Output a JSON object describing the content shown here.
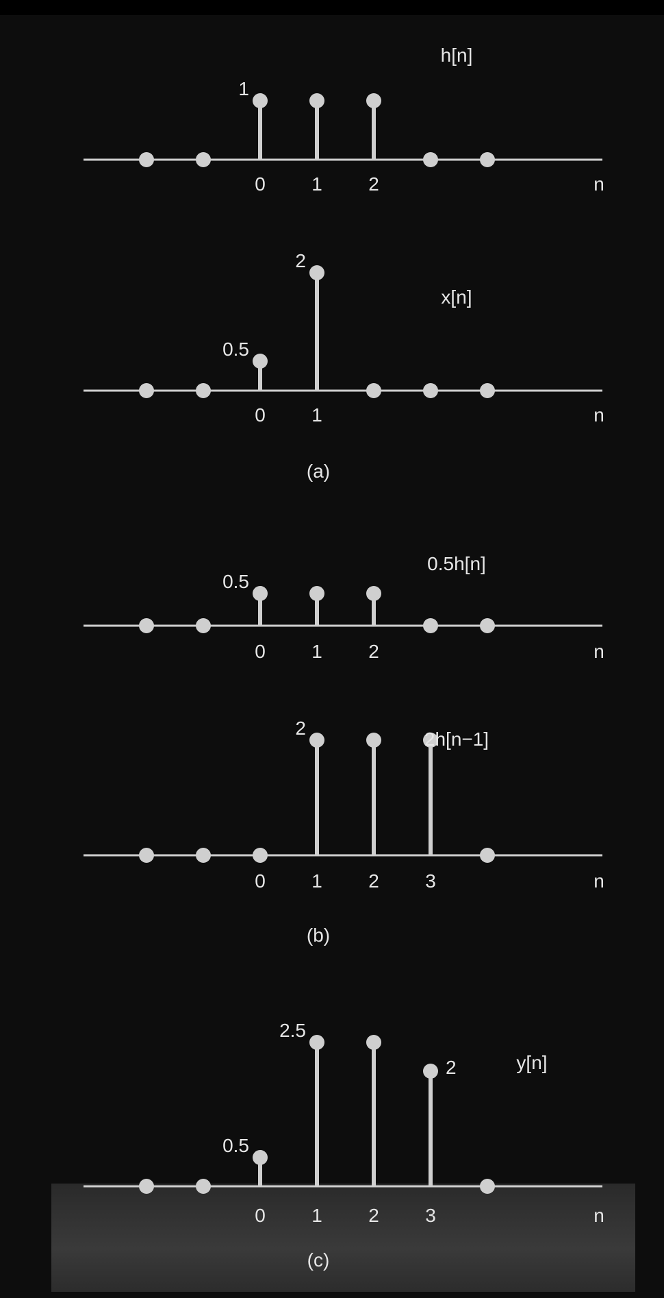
{
  "chart_data": [
    {
      "type": "stem",
      "series_label": "h[n]",
      "x": [
        -2,
        -1,
        0,
        1,
        2,
        3,
        4
      ],
      "values": [
        0,
        0,
        1,
        1,
        1,
        0,
        0
      ],
      "x_tick_labels": [
        "",
        "",
        "0",
        "1",
        "2",
        "",
        ""
      ],
      "value_labels": [
        {
          "x": 0,
          "text": "1"
        }
      ],
      "axis_label": "n",
      "ylim": [
        0,
        2.5
      ],
      "colors": {
        "stem": "#cccccc",
        "axis": "#cccccc"
      }
    },
    {
      "type": "stem",
      "series_label": "x[n]",
      "x": [
        -2,
        -1,
        0,
        1,
        2,
        3,
        4
      ],
      "values": [
        0,
        0,
        0.5,
        2,
        0,
        0,
        0
      ],
      "x_tick_labels": [
        "",
        "",
        "0",
        "1",
        "",
        "",
        ""
      ],
      "value_labels": [
        {
          "x": 0,
          "text": "0.5"
        },
        {
          "x": 1,
          "text": "2"
        }
      ],
      "axis_label": "n",
      "ylim": [
        0,
        2.5
      ],
      "caption": "(a)"
    },
    {
      "type": "stem",
      "series_label": "0.5h[n]",
      "x": [
        -2,
        -1,
        0,
        1,
        2,
        3,
        4
      ],
      "values": [
        0,
        0,
        0.5,
        0.5,
        0.5,
        0,
        0
      ],
      "x_tick_labels": [
        "",
        "",
        "0",
        "1",
        "2",
        "",
        ""
      ],
      "value_labels": [
        {
          "x": 0,
          "text": "0.5"
        }
      ],
      "axis_label": "n",
      "ylim": [
        0,
        2.5
      ]
    },
    {
      "type": "stem",
      "series_label": "2h[n−1]",
      "x": [
        -2,
        -1,
        0,
        1,
        2,
        3,
        4
      ],
      "values": [
        0,
        0,
        0,
        2,
        2,
        2,
        0
      ],
      "x_tick_labels": [
        "",
        "",
        "0",
        "1",
        "2",
        "3",
        ""
      ],
      "value_labels": [
        {
          "x": 1,
          "text": "2"
        }
      ],
      "axis_label": "n",
      "ylim": [
        0,
        2.5
      ],
      "caption": "(b)"
    },
    {
      "type": "stem",
      "series_label": "y[n]",
      "x": [
        -2,
        -1,
        0,
        1,
        2,
        3,
        4
      ],
      "values": [
        0,
        0,
        0.5,
        2.5,
        2.5,
        2,
        0
      ],
      "x_tick_labels": [
        "",
        "",
        "0",
        "1",
        "2",
        "3",
        ""
      ],
      "value_labels": [
        {
          "x": 0,
          "text": "0.5"
        },
        {
          "x": 1,
          "text": "2.5"
        },
        {
          "x": 3,
          "text": "2"
        }
      ],
      "axis_label": "n",
      "ylim": [
        0,
        2.5
      ],
      "caption": "(c)"
    }
  ]
}
